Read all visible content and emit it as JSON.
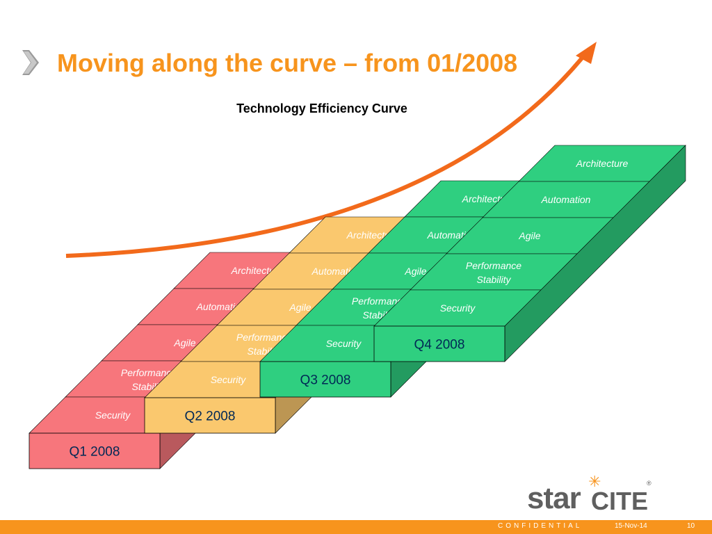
{
  "title": "Moving along the curve – from 01/2008",
  "subtitle": "Technology Efficiency Curve",
  "quarters": [
    {
      "label": "Q1 2008",
      "color": "#f7767c",
      "items": [
        "Architecture",
        "Automation",
        "Agile",
        "Performance Stability",
        "Security"
      ]
    },
    {
      "label": "Q2 2008",
      "color": "#fac86e",
      "items": [
        "Automation",
        "Agile",
        "Performance Stability",
        "Security"
      ]
    },
    {
      "label": "Q3 2008",
      "color": "#2fcf80",
      "items": [
        "Agile",
        "Performance Stability",
        "Security"
      ]
    },
    {
      "label": "Q4 2008",
      "color": "#2fcf80",
      "items": [
        "Performance Stability",
        "Security"
      ]
    }
  ],
  "stack_items": [
    {
      "color": "#f7767c",
      "labels": [
        "Architecture",
        "Automation",
        "Agile",
        "Performance Stability",
        "Security"
      ]
    },
    {
      "color": "#fac86e",
      "labels": [
        "Architecture",
        "Automation",
        "Agile",
        "Performance Stability",
        "Security"
      ]
    },
    {
      "color": "#2fcf80",
      "labels": [
        "Architecture",
        "Automation",
        "Agile",
        "Performance Stability",
        "Security"
      ]
    },
    {
      "color": "#2fcf80",
      "labels": [
        "Architecture",
        "Automation",
        "Agile",
        "Performance Stability",
        "Security"
      ]
    }
  ],
  "footer": {
    "confidential": "CONFIDENTIAL",
    "date": "15-Nov-14",
    "page": "10"
  },
  "logo": {
    "star": "star",
    "cite": "CITE",
    "reg": "®"
  },
  "colors": {
    "accent": "#f7941d",
    "arrow": "#f26a1b"
  }
}
